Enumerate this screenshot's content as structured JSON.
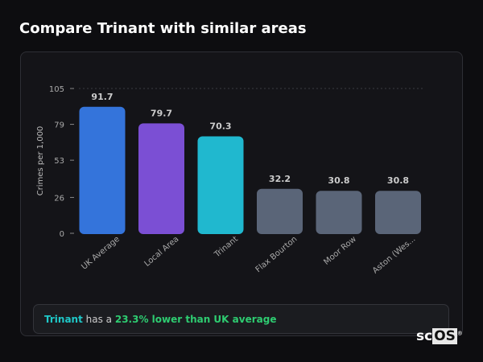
{
  "header": {
    "title": "Compare Trinant with similar areas"
  },
  "chart_data": {
    "type": "bar",
    "categories": [
      "UK Average",
      "Local Area",
      "Trinant",
      "Flax Bourton",
      "Moor Row",
      "Aston (Wes..."
    ],
    "values": [
      91.7,
      79.7,
      70.3,
      32.2,
      30.8,
      30.8
    ],
    "value_labels": [
      "91.7",
      "79.7",
      "70.3",
      "32.2",
      "30.8",
      "30.8"
    ],
    "colors": [
      "#3474db",
      "#7b4fd4",
      "#20b8cf",
      "#5a6578",
      "#5a6578",
      "#5a6578"
    ],
    "ylabel": "Crimes per 1,000",
    "xlabel": "",
    "yticks": [
      0,
      26,
      53,
      79,
      105
    ],
    "ylim": [
      0,
      105
    ],
    "grid": "top dotted line only"
  },
  "summary": {
    "area": "Trinant",
    "middle": " has a ",
    "highlight": "23.3% lower than UK average"
  },
  "logo": {
    "text_a": "sc",
    "text_b": "OS"
  }
}
